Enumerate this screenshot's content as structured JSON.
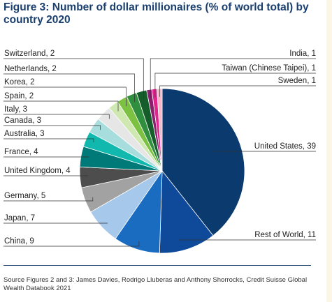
{
  "title": "Figure 3: Number of dollar millionaires (% of world total) by country 2020",
  "source": "Source Figures 2 and 3: James Davies, Rodrigo Lluberas and Anthony Shorrocks, Credit Suisse Global Wealth Databook 2021",
  "chart_data": {
    "type": "pie",
    "title": "Figure 3: Number of dollar millionaires (% of world total) by country 2020",
    "unit": "% of world total",
    "slices": [
      {
        "label": "United States, 39",
        "name": "United States",
        "value": 39,
        "color": "#0b3a6e"
      },
      {
        "label": "Rest of World, 11",
        "name": "Rest of World",
        "value": 11,
        "color": "#0f4a9a"
      },
      {
        "label": "China, 9",
        "name": "China",
        "value": 9,
        "color": "#1a6cc0"
      },
      {
        "label": "Japan, 7",
        "name": "Japan",
        "value": 7,
        "color": "#a6c8ea"
      },
      {
        "label": "Germany, 5",
        "name": "Germany",
        "value": 5,
        "color": "#a2a2a2"
      },
      {
        "label": "United Kingdom, 4",
        "name": "United Kingdom",
        "value": 4,
        "color": "#4d4d4d"
      },
      {
        "label": "France, 4",
        "name": "France",
        "value": 4,
        "color": "#007a78"
      },
      {
        "label": "Australia, 3",
        "name": "Australia",
        "value": 3,
        "color": "#10b8ae"
      },
      {
        "label": "Canada, 3",
        "name": "Canada",
        "value": 3,
        "color": "#a7dedd"
      },
      {
        "label": "Italy, 3",
        "name": "Italy",
        "value": 3,
        "color": "#e6e6e6"
      },
      {
        "label": "Spain, 2",
        "name": "Spain",
        "value": 2,
        "color": "#cfe8b2"
      },
      {
        "label": "Korea, 2",
        "name": "Korea",
        "value": 2,
        "color": "#7cc142"
      },
      {
        "label": "Netherlands, 2",
        "name": "Netherlands",
        "value": 2,
        "color": "#2f8f3e"
      },
      {
        "label": "Switzerland, 2",
        "name": "Switzerland",
        "value": 2,
        "color": "#155e2c"
      },
      {
        "label": "India, 1",
        "name": "India",
        "value": 1,
        "color": "#8a1f6e"
      },
      {
        "label": "Taiwan (Chinese Taipei), 1",
        "name": "Taiwan (Chinese Taipei)",
        "value": 1,
        "color": "#e0268c"
      },
      {
        "label": "Sweden, 1",
        "name": "Sweden",
        "value": 1,
        "color": "#f4b8c8"
      }
    ]
  }
}
